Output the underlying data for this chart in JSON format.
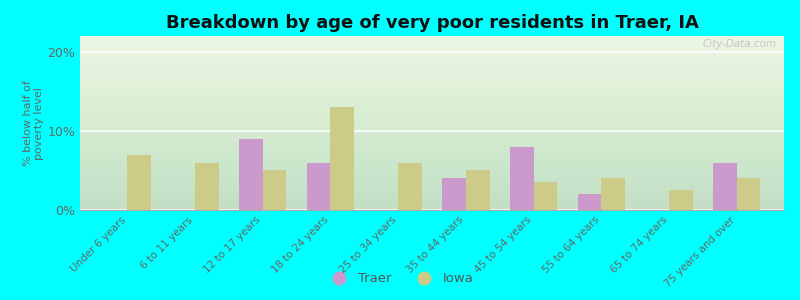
{
  "title": "Breakdown by age of very poor residents in Traer, IA",
  "ylabel": "% below half of\npoverty level",
  "categories": [
    "Under 6 years",
    "6 to 11 years",
    "12 to 17 years",
    "18 to 24 years",
    "25 to 34 years",
    "35 to 44 years",
    "45 to 54 years",
    "55 to 64 years",
    "65 to 74 years",
    "75 years and over"
  ],
  "traer_values": [
    0,
    0,
    9.0,
    6.0,
    0,
    4.0,
    8.0,
    2.0,
    0,
    6.0
  ],
  "iowa_values": [
    7.0,
    6.0,
    5.0,
    13.0,
    6.0,
    5.0,
    3.5,
    4.0,
    2.5,
    4.0
  ],
  "traer_color": "#cc99cc",
  "iowa_color": "#cccc88",
  "background_color": "#00ffff",
  "ylim": [
    0,
    22
  ],
  "yticks": [
    0,
    10,
    20
  ],
  "ytick_labels": [
    "0%",
    "10%",
    "20%"
  ],
  "bar_width": 0.35,
  "title_fontsize": 13,
  "legend_labels": [
    "Traer",
    "Iowa"
  ],
  "watermark": "City-Data.com"
}
